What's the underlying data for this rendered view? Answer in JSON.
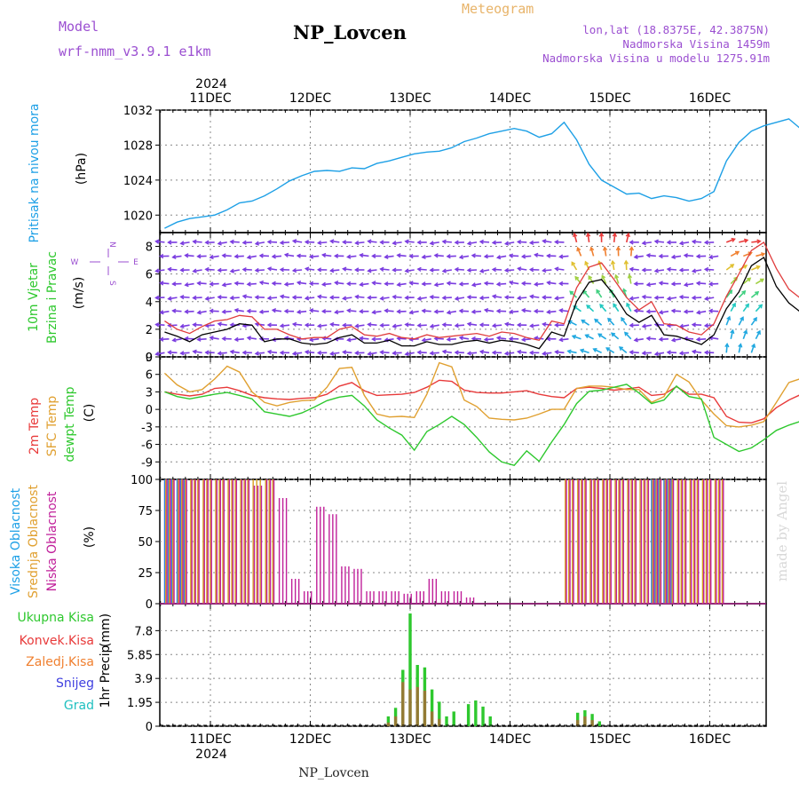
{
  "header": {
    "model_label": "Model",
    "model_value": "wrf-nmm_v3.9.1 e1km",
    "station": "NP_Lovcen",
    "product": "Meteogram",
    "lonlat": "lon,lat (18.8375E, 42.3875N)",
    "altitude": "Nadmorska Visina 1459m",
    "model_altitude": "Nadmorska Visina u modelu 1275.91m",
    "year": "2024"
  },
  "footer": {
    "station": "NP_Lovcen",
    "watermark": "made by Angel"
  },
  "colors": {
    "pressure": "#1ea0e6",
    "wind_speed": "#000000",
    "wind_gust": "#e03c3c",
    "wind_calm_arrows": "#7a3ce0",
    "temp_2m": "#e83a3a",
    "temp_sfc": "#e0a030",
    "temp_dewpt": "#2ec82e",
    "cloud_high": "#2f7fe0",
    "cloud_mid": "#d8a01e",
    "cloud_low": "#c0209a",
    "precip_total": "#2ec82e",
    "precip_conv": "#e83a3a",
    "precip_strat": "#f08030",
    "precip_snow": "#4040e0",
    "precip_grad": "#20c0c0"
  },
  "chart_data": [
    {
      "id": "pressure",
      "type": "line",
      "ylabel": "Pritisak na nivou mora",
      "unit": "(hPa)",
      "ylim": [
        1018,
        1032
      ],
      "yticks": [
        1020,
        1024,
        1028,
        1032
      ],
      "x_day_labels": [
        "11DEC",
        "12DEC",
        "13DEC",
        "14DEC",
        "15DEC",
        "16DEC"
      ],
      "x_start_hour": 13,
      "x_step_hours": 3,
      "values": [
        1018.5,
        1019.2,
        1019.6,
        1019.8,
        1020.0,
        1020.6,
        1021.4,
        1021.6,
        1022.2,
        1023.0,
        1023.9,
        1024.5,
        1025.0,
        1025.1,
        1025.0,
        1025.4,
        1025.3,
        1025.9,
        1026.2,
        1026.6,
        1027.0,
        1027.2,
        1027.3,
        1027.7,
        1028.4,
        1028.8,
        1029.3,
        1029.6,
        1029.9,
        1029.6,
        1028.9,
        1029.3,
        1030.6,
        1028.6,
        1025.8,
        1024.0,
        1023.2,
        1022.4,
        1022.5,
        1021.9,
        1022.2,
        1022.0,
        1021.6,
        1021.9,
        1022.7,
        1026.2,
        1028.3,
        1029.6,
        1030.2,
        1030.6,
        1031.0,
        1029.8
      ]
    },
    {
      "id": "wind",
      "type": "line",
      "ylabel": "10m Vjetar Brzina i Pravac",
      "unit": "(m/s)",
      "direction_legend": [
        "W",
        "N",
        "E",
        "S"
      ],
      "ylim": [
        0,
        9
      ],
      "yticks": [
        0,
        2,
        4,
        6,
        8
      ],
      "series": [
        {
          "name": "speed",
          "values": [
            1.8,
            1.5,
            1.1,
            1.6,
            1.8,
            2.0,
            2.4,
            2.3,
            1.1,
            1.3,
            1.3,
            1.0,
            0.9,
            1.0,
            1.4,
            1.6,
            1.0,
            1.0,
            1.2,
            0.8,
            0.8,
            1.1,
            0.9,
            0.9,
            1.1,
            1.2,
            1.0,
            1.2,
            1.1,
            0.9,
            0.6,
            1.8,
            1.5,
            4.0,
            5.4,
            5.6,
            4.5,
            3.1,
            2.5,
            3.0,
            1.6,
            1.5,
            1.2,
            0.9,
            1.6,
            3.5,
            4.7,
            6.6,
            7.2,
            5.1,
            3.9,
            3.2
          ]
        },
        {
          "name": "gust",
          "values": [
            2.6,
            2.0,
            1.7,
            2.2,
            2.6,
            2.7,
            3.0,
            2.9,
            2.0,
            2.0,
            1.6,
            1.3,
            1.4,
            1.4,
            2.0,
            2.2,
            1.6,
            1.5,
            1.7,
            1.4,
            1.3,
            1.6,
            1.4,
            1.5,
            1.6,
            1.7,
            1.5,
            1.8,
            1.7,
            1.4,
            1.2,
            2.6,
            2.4,
            5.0,
            6.5,
            6.8,
            5.6,
            4.3,
            3.4,
            4.0,
            2.4,
            2.3,
            1.8,
            1.6,
            2.4,
            4.4,
            6.0,
            7.7,
            8.3,
            6.4,
            4.9,
            4.2
          ]
        }
      ]
    },
    {
      "id": "temperature",
      "type": "line",
      "ylabel": "2m Temp SFC Temp dewpt Temp",
      "unit": "(C)",
      "ylim": [
        -12,
        9
      ],
      "yticks": [
        -9,
        -6,
        -3,
        0,
        3,
        6,
        9
      ],
      "series": [
        {
          "name": "2m Temp",
          "values": [
            3.0,
            2.6,
            2.3,
            2.6,
            3.6,
            3.8,
            3.2,
            2.4,
            2.0,
            1.8,
            1.7,
            1.9,
            2.0,
            2.6,
            4.0,
            4.6,
            3.2,
            2.4,
            2.5,
            2.6,
            2.9,
            3.8,
            5.0,
            4.8,
            3.3,
            2.9,
            2.8,
            2.8,
            3.0,
            3.2,
            2.6,
            2.2,
            2.0,
            3.6,
            3.8,
            3.6,
            3.3,
            3.5,
            3.8,
            2.4,
            2.6,
            3.9,
            2.6,
            2.6,
            2.0,
            -1.2,
            -2.2,
            -2.3,
            -1.6,
            0.3,
            1.6,
            2.6
          ]
        },
        {
          "name": "SFC Temp",
          "values": [
            6.2,
            4.2,
            3.0,
            3.4,
            5.2,
            7.4,
            6.4,
            3.0,
            1.2,
            0.6,
            1.2,
            1.5,
            1.6,
            3.8,
            7.0,
            7.2,
            2.4,
            -0.8,
            -1.3,
            -1.2,
            -1.4,
            2.6,
            8.0,
            7.3,
            1.6,
            0.5,
            -1.5,
            -1.7,
            -1.8,
            -1.5,
            -0.8,
            0.0,
            0.0,
            3.6,
            4.0,
            4.0,
            3.8,
            3.4,
            3.4,
            1.2,
            2.2,
            6.0,
            4.7,
            1.6,
            -0.8,
            -2.8,
            -3.0,
            -2.7,
            -2.1,
            1.2,
            4.6,
            5.3
          ]
        },
        {
          "name": "dewpt Temp",
          "values": [
            3.0,
            2.2,
            1.8,
            2.2,
            2.6,
            2.9,
            2.4,
            1.8,
            -0.4,
            -0.8,
            -1.2,
            -0.6,
            0.4,
            1.5,
            2.1,
            2.4,
            0.6,
            -1.8,
            -3.2,
            -4.4,
            -7.0,
            -3.8,
            -2.6,
            -1.2,
            -2.6,
            -4.8,
            -7.3,
            -9.0,
            -9.6,
            -7.1,
            -8.9,
            -5.6,
            -2.6,
            1.0,
            3.1,
            3.3,
            3.8,
            4.3,
            2.8,
            1.0,
            1.6,
            4.0,
            2.2,
            1.8,
            -4.8,
            -6.0,
            -7.2,
            -6.6,
            -5.2,
            -3.6,
            -2.7,
            -2.0
          ]
        }
      ]
    },
    {
      "id": "clouds",
      "type": "bar",
      "ylabel": "Visoka Oblacnost Srednja Oblacnost Niska Oblacnost",
      "unit": "(%)",
      "ylim": [
        0,
        100
      ],
      "yticks": [
        0,
        25,
        50,
        75,
        100
      ],
      "series": [
        {
          "name": "Visoka Oblacnost",
          "values": [
            100,
            100,
            0,
            0,
            0,
            0,
            0,
            0,
            0,
            0,
            0,
            0,
            0,
            0,
            0,
            0,
            0,
            0,
            0,
            0,
            0,
            0,
            0,
            0,
            0,
            0,
            0,
            0,
            0,
            0,
            0,
            0,
            0,
            0,
            0,
            0,
            0,
            0,
            0,
            100,
            100,
            0,
            0,
            0,
            0,
            0,
            0,
            0,
            0,
            0,
            0,
            0
          ]
        },
        {
          "name": "Srednja Oblacnost",
          "values": [
            100,
            100,
            100,
            100,
            100,
            100,
            100,
            100,
            100,
            0,
            0,
            0,
            0,
            0,
            0,
            0,
            0,
            0,
            0,
            0,
            0,
            0,
            0,
            0,
            0,
            0,
            0,
            0,
            0,
            0,
            0,
            0,
            100,
            100,
            100,
            100,
            100,
            100,
            100,
            100,
            100,
            100,
            100,
            100,
            100,
            0,
            0,
            0,
            0,
            0,
            0,
            0
          ]
        },
        {
          "name": "Niska Oblacnost",
          "values": [
            100,
            100,
            100,
            100,
            100,
            100,
            100,
            95,
            100,
            85,
            20,
            10,
            78,
            72,
            30,
            28,
            10,
            10,
            10,
            8,
            10,
            20,
            10,
            10,
            5,
            0,
            0,
            0,
            0,
            0,
            0,
            0,
            100,
            100,
            100,
            100,
            100,
            100,
            100,
            100,
            100,
            100,
            100,
            100,
            100,
            0,
            0,
            0,
            0,
            0,
            0,
            0
          ]
        }
      ]
    },
    {
      "id": "precip",
      "type": "bar",
      "ylabel": "1hr Precip",
      "unit": "(mm)",
      "ylim": [
        0,
        10
      ],
      "yticks": [
        0,
        1.95,
        3.9,
        5.85,
        7.8
      ],
      "legend": [
        "Ukupna Kisa",
        "Konvek.Kisa",
        "Zaledj.Kisa",
        "Snijeg",
        "Grad"
      ],
      "series": [
        {
          "name": "Ukupna Kisa",
          "values": [
            0.2,
            0.3,
            0.8,
            0.5,
            0,
            0,
            0,
            0,
            0,
            0,
            0,
            0,
            0,
            0,
            0,
            0,
            0,
            0,
            0,
            0,
            0,
            0,
            0,
            0,
            0,
            0,
            0,
            0,
            0,
            0,
            0,
            0,
            0,
            0,
            0,
            0,
            0,
            0.8,
            1.5,
            4.6,
            9.2,
            5.0,
            4.8,
            3.0,
            2.0,
            0.8,
            1.2,
            0,
            1.8,
            2.1,
            1.6,
            0.8,
            0,
            0,
            0,
            0,
            0,
            0,
            0,
            0,
            0,
            0,
            0,
            1.1,
            1.3,
            1.0,
            0.4,
            0,
            0,
            0,
            0,
            0,
            0,
            0,
            0,
            0,
            0,
            0,
            0,
            0,
            0,
            0,
            0,
            0
          ]
        },
        {
          "name": "Konvek.Kisa",
          "values": [
            0,
            0,
            0,
            0,
            0,
            0,
            0,
            0,
            0,
            0,
            0,
            0,
            0,
            0,
            0,
            0,
            0,
            0,
            0,
            0,
            0,
            0,
            0,
            0,
            0,
            0,
            0,
            0,
            0,
            0,
            0,
            0,
            0,
            0,
            0,
            0,
            0,
            0.3,
            0.8,
            3.6,
            3.0,
            3.2,
            2.9,
            1.2,
            0.6,
            0,
            0,
            0,
            0,
            0,
            0,
            0,
            0,
            0,
            0,
            0,
            0,
            0,
            0,
            0,
            0,
            0,
            0,
            0.5,
            0.8,
            0.5,
            0,
            0,
            0,
            0,
            0,
            0,
            0,
            0,
            0,
            0,
            0,
            0,
            0,
            0,
            0,
            0,
            0,
            0
          ]
        }
      ]
    }
  ]
}
